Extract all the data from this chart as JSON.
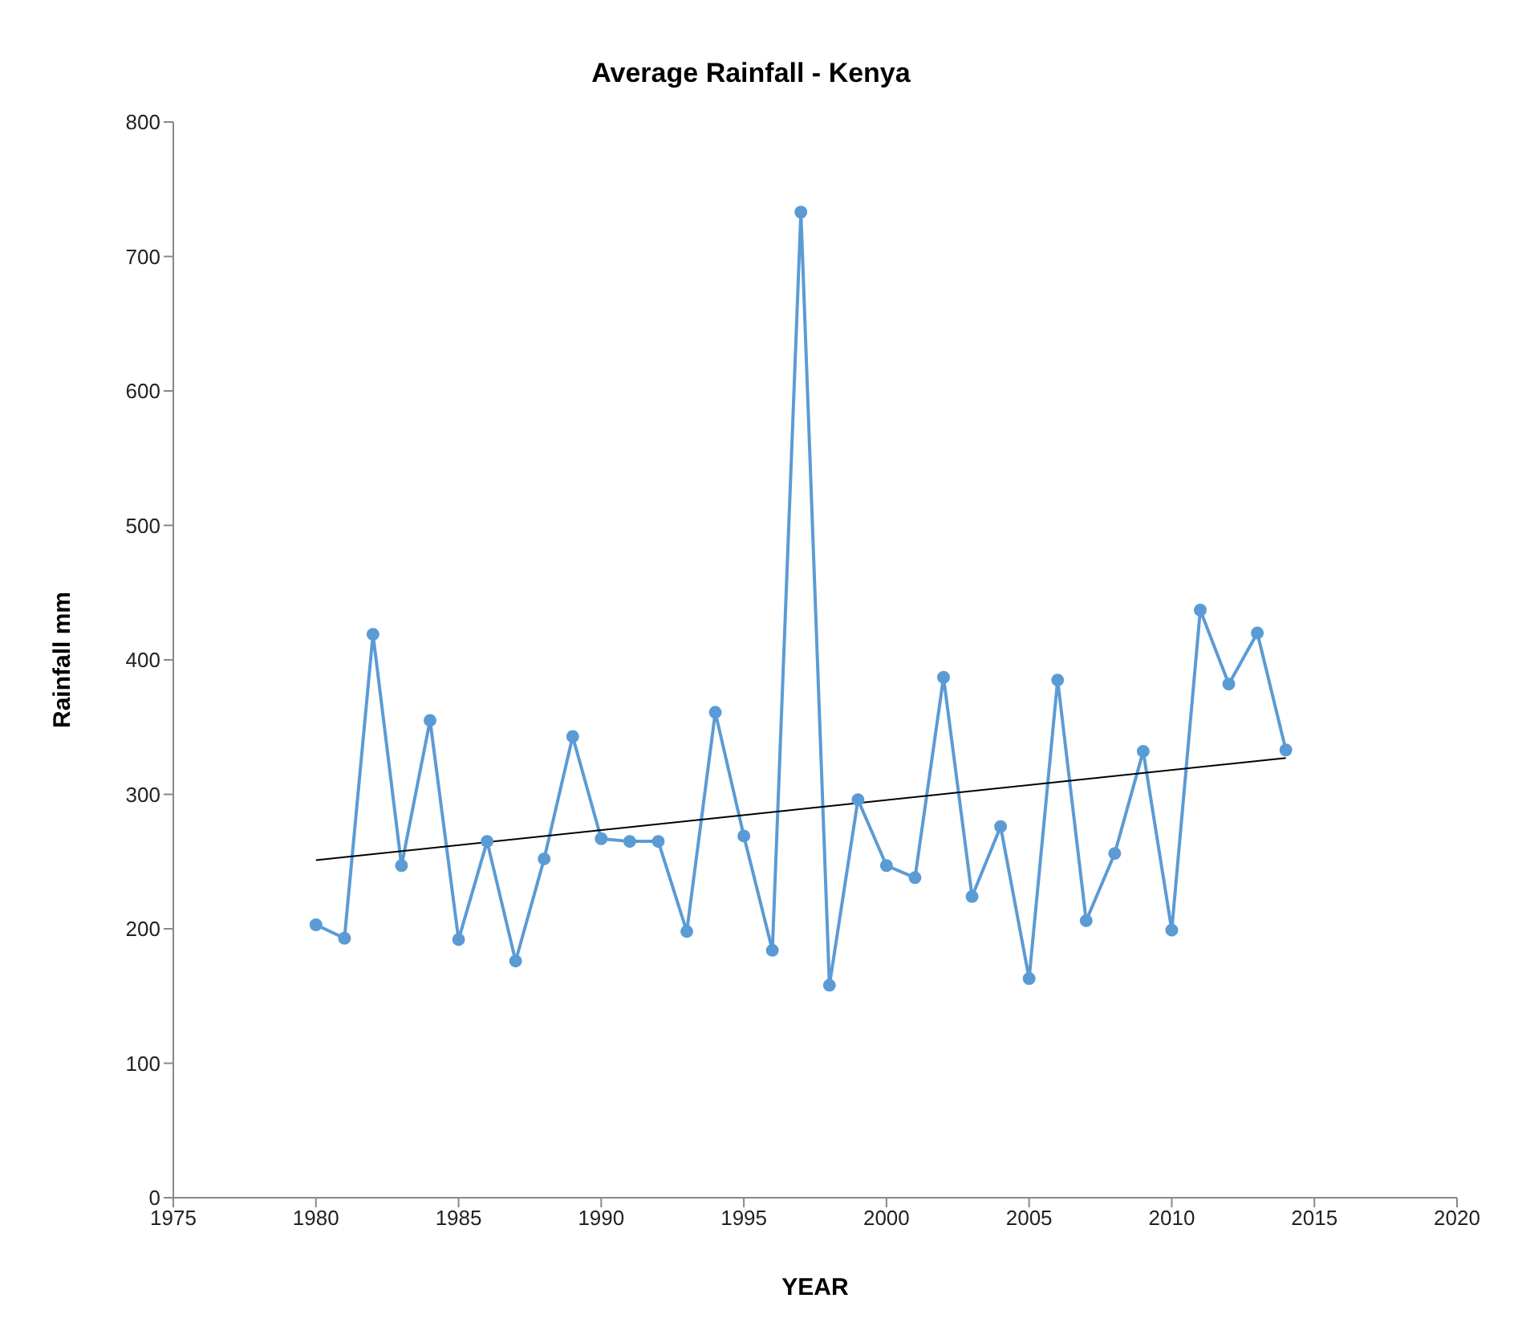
{
  "chart_data": {
    "type": "line",
    "title": "Average Rainfall - Kenya",
    "xlabel": "YEAR",
    "ylabel": "Rainfall mm",
    "x": [
      1980,
      1981,
      1982,
      1983,
      1984,
      1985,
      1986,
      1987,
      1988,
      1989,
      1990,
      1991,
      1992,
      1993,
      1994,
      1995,
      1996,
      1997,
      1998,
      1999,
      2000,
      2001,
      2002,
      2003,
      2004,
      2005,
      2006,
      2007,
      2008,
      2009,
      2010,
      2011,
      2012,
      2013,
      2014
    ],
    "series": [
      {
        "color": "#5b9bd5",
        "marker": "circle",
        "values": [
          203,
          193,
          419,
          247,
          355,
          192,
          265,
          176,
          252,
          343,
          267,
          265,
          265,
          198,
          361,
          269,
          184,
          733,
          158,
          296,
          247,
          238,
          387,
          224,
          276,
          163,
          385,
          206,
          256,
          332,
          199,
          437,
          382,
          420,
          333
        ]
      },
      {
        "type": "line",
        "color": "#000000",
        "marker": "none",
        "x": [
          1980,
          2014
        ],
        "values": [
          251,
          327
        ]
      }
    ],
    "xlim": [
      1975,
      2020
    ],
    "xticks": [
      1975,
      1980,
      1985,
      1990,
      1995,
      2000,
      2005,
      2010,
      2015,
      2020
    ],
    "ylim": [
      0,
      800
    ],
    "yticks": [
      0,
      100,
      200,
      300,
      400,
      500,
      600,
      700,
      800
    ],
    "grid": false
  }
}
